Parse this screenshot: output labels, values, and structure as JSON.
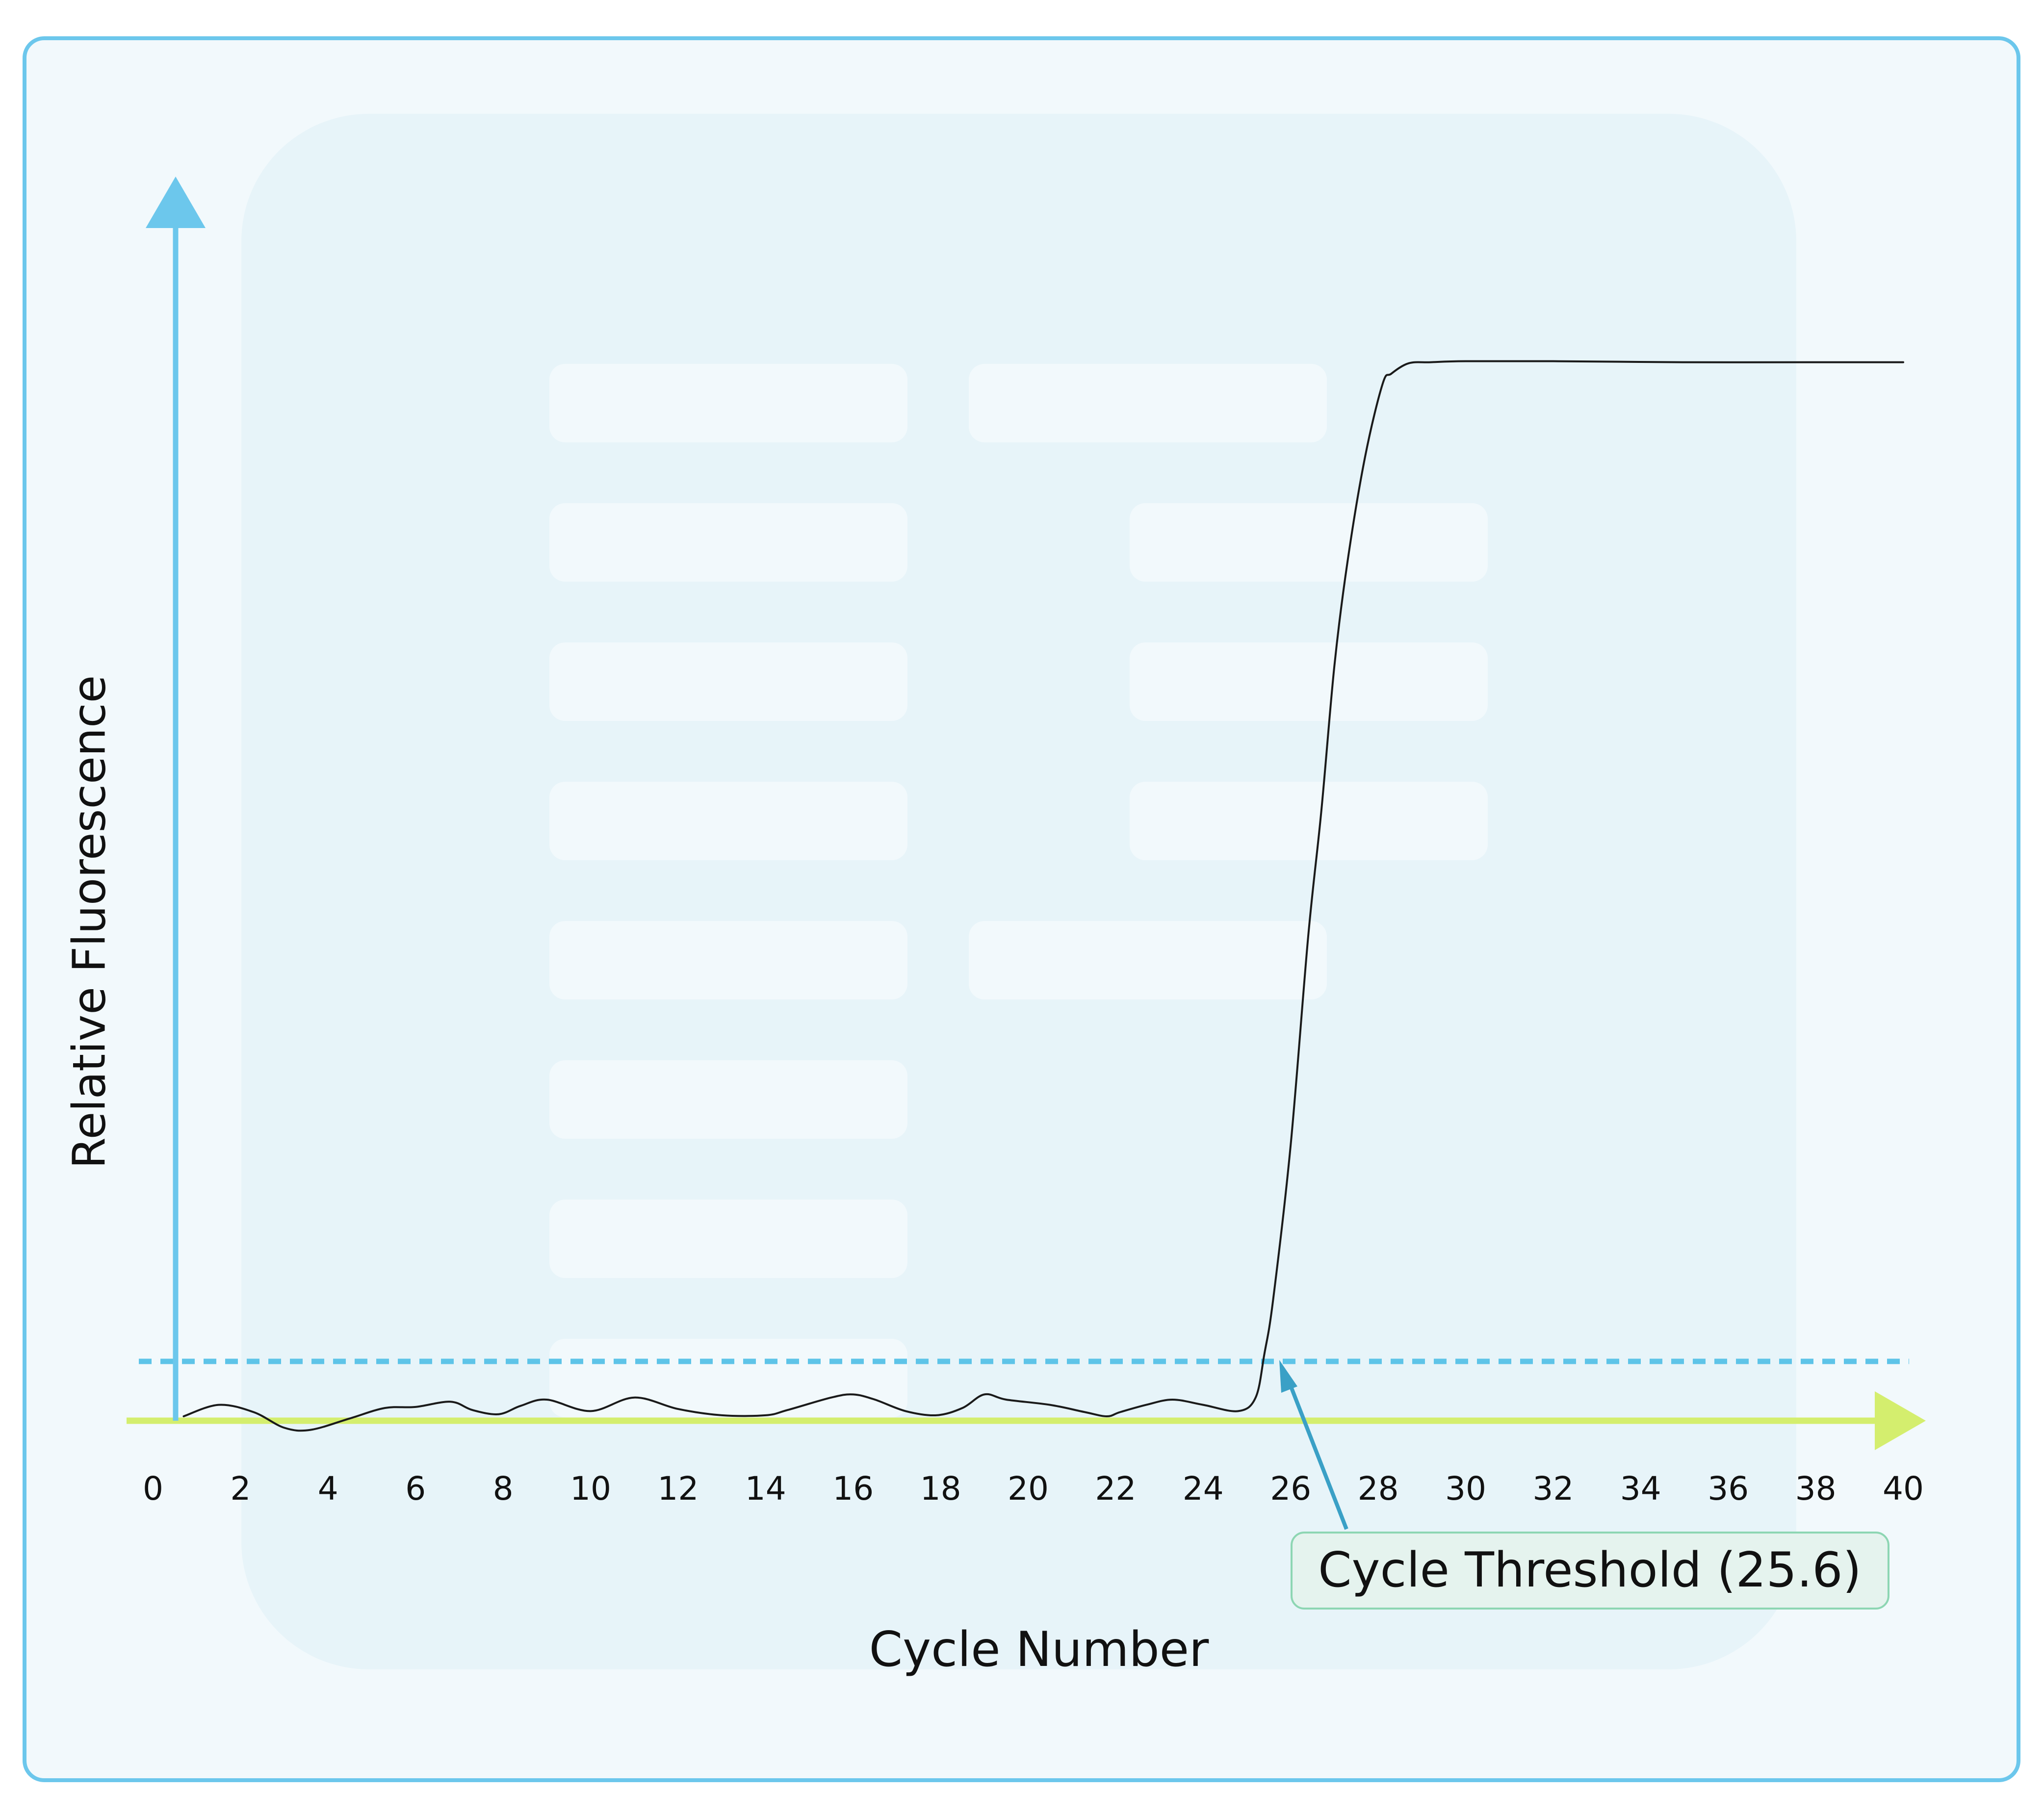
{
  "chart_data": {
    "type": "line",
    "xlabel": "Cycle Number",
    "ylabel": "Relative Fluorescence",
    "xlim": [
      0,
      40
    ],
    "x_ticks": [
      "0",
      "2",
      "4",
      "6",
      "8",
      "10",
      "12",
      "14",
      "16",
      "18",
      "20",
      "22",
      "24",
      "26",
      "28",
      "30",
      "32",
      "34",
      "36",
      "38",
      "40"
    ],
    "y_ticks_shown": false,
    "grid": false,
    "threshold_level": 0.065,
    "annotation": {
      "text": "Cycle Threshold (25.6)",
      "x": 25.6
    },
    "series": [
      {
        "x": [
          0.7,
          1.5,
          2.3,
          3.0,
          3.6,
          4.5,
          5.3,
          6.0,
          6.8,
          7.3,
          7.9,
          8.4,
          9.0,
          10.0,
          11.0,
          12.0,
          13.0,
          14.0,
          14.5,
          15.5,
          16.0,
          16.5,
          17.2,
          17.9,
          18.5,
          19.0,
          19.5,
          20.5,
          21.3,
          21.8,
          22.1,
          22.7,
          23.3,
          24.0,
          24.8,
          25.2,
          25.4,
          25.6,
          26.0,
          26.4,
          26.7,
          27.0,
          27.3,
          27.7,
          28.1,
          28.3,
          28.7,
          29.2,
          30.0,
          32.0,
          35.0,
          38.0,
          40.0
        ],
        "values": [
          0.0,
          0.011,
          0.004,
          -0.011,
          -0.013,
          -0.002,
          0.008,
          0.009,
          0.014,
          0.006,
          0.002,
          0.01,
          0.016,
          0.005,
          0.018,
          0.007,
          0.001,
          0.001,
          0.006,
          0.018,
          0.021,
          0.016,
          0.005,
          0.001,
          0.008,
          0.021,
          0.016,
          0.011,
          0.004,
          0.0,
          0.004,
          0.011,
          0.016,
          0.011,
          0.005,
          0.018,
          0.06,
          0.112,
          0.26,
          0.46,
          0.58,
          0.72,
          0.82,
          0.92,
          0.99,
          1.0,
          1.01,
          1.011,
          1.012,
          1.012,
          1.011,
          1.011,
          1.011
        ]
      }
    ]
  },
  "colors": {
    "background": "#f2f9fc",
    "frame_border": "#6cc7ec",
    "panel": "#e7f4f9",
    "y_axis": "#6cc7ec",
    "x_axis": "#d4ee6e",
    "threshold_line": "#5ec4e8",
    "curve": "#1a1a1a",
    "callout_fill": "#e5f3ee",
    "callout_border": "#8dd6b3",
    "pointer": "#3aa0c6",
    "text": "#111111"
  }
}
